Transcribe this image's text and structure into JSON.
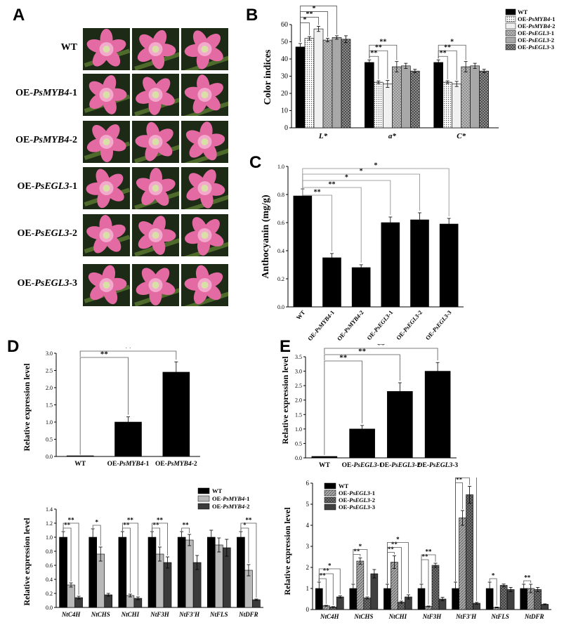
{
  "panels": {
    "A": "A",
    "B": "B",
    "C": "C",
    "D": "D",
    "E": "E"
  },
  "panel_A": {
    "rows": [
      {
        "prefix": "WT",
        "gene": "",
        "suffix": ""
      },
      {
        "prefix": "OE-",
        "gene": "PsMYB4",
        "suffix": "-1"
      },
      {
        "prefix": "OE-",
        "gene": "PsMYB4",
        "suffix": "-2"
      },
      {
        "prefix": "OE-",
        "gene": "PsEGL3",
        "suffix": "-1"
      },
      {
        "prefix": "OE-",
        "gene": "PsEGL3",
        "suffix": "-2"
      },
      {
        "prefix": "OE-",
        "gene": "PsEGL3",
        "suffix": "-3"
      }
    ],
    "colors": {
      "background": "#1d2a16",
      "petal": "#e46aa4",
      "petal_light": "#f2a9cb",
      "center": "#d8e0a6"
    }
  },
  "chart_data": [
    {
      "id": "B",
      "type": "bar",
      "ylabel": "Color indices",
      "ylim": [
        0,
        60
      ],
      "yticks": [
        0,
        10,
        20,
        30,
        40,
        50,
        60
      ],
      "categories": [
        "L*",
        "a*",
        "C*"
      ],
      "legend_placement": "top-right",
      "series": [
        {
          "name": "WT",
          "values": [
            47,
            38,
            38
          ],
          "errors": [
            2,
            1.5,
            1.5
          ],
          "pattern": "black"
        },
        {
          "name": "OE-PsMYB4-1",
          "values": [
            52,
            26.5,
            26.5
          ],
          "errors": [
            1,
            0.8,
            0.8
          ],
          "pattern": "dots"
        },
        {
          "name": "OE-PsMYB4-2",
          "values": [
            57.5,
            25.5,
            25.5
          ],
          "errors": [
            1.5,
            2,
            1.5
          ],
          "pattern": "light"
        },
        {
          "name": "OE-PsEGL3-1",
          "values": [
            51,
            35.5,
            35.5
          ],
          "errors": [
            1,
            3,
            3
          ],
          "pattern": "grid"
        },
        {
          "name": "OE-PsEGL3-2",
          "values": [
            52.5,
            36,
            36
          ],
          "errors": [
            1,
            1.5,
            1.5
          ],
          "pattern": "mid"
        },
        {
          "name": "OE-PsEGL3-3",
          "values": [
            51.5,
            33,
            33
          ],
          "errors": [
            2,
            1,
            1
          ],
          "pattern": "cross"
        }
      ],
      "significance": [
        {
          "category": "L*",
          "marks": [
            "*",
            "**",
            "*",
            "*"
          ]
        },
        {
          "category": "a*",
          "marks": [
            "**",
            "**",
            "**"
          ]
        },
        {
          "category": "C*",
          "marks": [
            "**",
            "**",
            "*"
          ]
        }
      ]
    },
    {
      "id": "C",
      "type": "bar",
      "ylabel": "Anthocyanin (mg/g)",
      "ylim": [
        0,
        1.0
      ],
      "yticks": [
        "0.0",
        "0.2",
        "0.4",
        "0.6",
        "0.8",
        "1.0"
      ],
      "categories": [
        "WT",
        "OE-PsMYB4-1",
        "OE-PsMYB4-2",
        "OE-PsEGL3-1",
        "OE-PsEGL3-2",
        "OE-PsEGL3-3"
      ],
      "values": [
        0.79,
        0.35,
        0.28,
        0.6,
        0.62,
        0.59
      ],
      "errors": [
        0.05,
        0.03,
        0.02,
        0.04,
        0.05,
        0.04
      ],
      "significance": [
        "**",
        "**",
        "*",
        "*",
        "*"
      ]
    },
    {
      "id": "D_top",
      "type": "bar",
      "ylabel": "Relative expression level",
      "ylim": [
        0,
        3.0
      ],
      "yticks": [
        "0.0",
        "0.5",
        "1.0",
        "1.5",
        "2.0",
        "2.5",
        "3.0"
      ],
      "categories": [
        "WT",
        "OE-PsMYB4-1",
        "OE-PsMYB4-2"
      ],
      "values": [
        0.02,
        1.0,
        2.45
      ],
      "errors": [
        0,
        0.15,
        0.3
      ],
      "significance": [
        "**",
        "**"
      ]
    },
    {
      "id": "D_bottom",
      "type": "bar",
      "ylabel": "Relative expression level",
      "ylim": [
        0,
        1.4
      ],
      "yticks": [
        "0.0",
        "0.2",
        "0.4",
        "0.6",
        "0.8",
        "1.0",
        "1.2",
        "1.4"
      ],
      "categories": [
        "NtC4H",
        "NtCHS",
        "NtCHI",
        "NtF3H",
        "NtF3'H",
        "NtFLS",
        "NtDFR"
      ],
      "legend_placement": "top-right",
      "series": [
        {
          "name": "WT",
          "values": [
            1.0,
            1.0,
            1.0,
            1.0,
            1.0,
            1.0,
            1.0
          ],
          "errors": [
            0.08,
            0.12,
            0.08,
            0.08,
            0.08,
            0.1,
            0.08
          ]
        },
        {
          "name": "OE-PsMYB4-1",
          "values": [
            0.32,
            0.76,
            0.17,
            0.76,
            0.96,
            0.89,
            0.53
          ],
          "errors": [
            0.03,
            0.1,
            0.02,
            0.1,
            0.08,
            0.1,
            0.08
          ]
        },
        {
          "name": "OE-PsMYB4-2",
          "values": [
            0.14,
            0.18,
            0.13,
            0.64,
            0.64,
            0.85,
            0.11
          ],
          "errors": [
            0.02,
            0.02,
            0.02,
            0.08,
            0.1,
            0.12,
            0.01
          ]
        }
      ],
      "significance": [
        {
          "category": "NtC4H",
          "marks": [
            "**",
            "**"
          ]
        },
        {
          "category": "NtCHS",
          "marks": [
            "*"
          ]
        },
        {
          "category": "NtCHI",
          "marks": [
            "**",
            "**"
          ]
        },
        {
          "category": "NtF3H",
          "marks": [
            "**",
            "**"
          ]
        },
        {
          "category": "NtF3'H",
          "marks": [
            "**"
          ]
        },
        {
          "category": "NtDFR",
          "marks": [
            "*",
            "**"
          ]
        }
      ]
    },
    {
      "id": "E_top",
      "type": "bar",
      "ylabel": "Relative expression level",
      "ylim": [
        0,
        3.5
      ],
      "yticks": [
        "0.0",
        "0.5",
        "1.0",
        "1.5",
        "2.0",
        "2.5",
        "3.0",
        "3.5"
      ],
      "categories": [
        "WT",
        "OE-PsEGL3-1",
        "OE-PsEGL3-2",
        "OE-PsEGL3-3"
      ],
      "values": [
        0.05,
        1.0,
        2.3,
        3.0
      ],
      "errors": [
        0,
        0.12,
        0.3,
        0.3
      ],
      "significance": [
        "**",
        "**",
        "**"
      ]
    },
    {
      "id": "E_bottom",
      "type": "bar",
      "ylabel": "Relative expression level",
      "ylim": [
        0,
        6
      ],
      "yticks": [
        "0",
        "1",
        "2",
        "3",
        "4",
        "5",
        "6"
      ],
      "categories": [
        "NtC4H",
        "NtCHS",
        "NtCHI",
        "NtF3H",
        "NtF3'H",
        "NtFLS",
        "NtDFR"
      ],
      "legend_placement": "top-left",
      "series": [
        {
          "name": "WT",
          "values": [
            1.0,
            1.0,
            1.0,
            1.0,
            1.0,
            1.0,
            1.0
          ],
          "errors": [
            0.3,
            0.2,
            0.2,
            0.2,
            0.3,
            0.3,
            0.2
          ]
        },
        {
          "name": "OE-PsEGL3-1",
          "values": [
            0.18,
            2.3,
            2.25,
            0.15,
            4.35,
            0.1,
            1.0
          ],
          "errors": [
            0.02,
            0.15,
            0.3,
            0.02,
            0.35,
            0.02,
            0.2
          ]
        },
        {
          "name": "OE-PsEGL3-2",
          "values": [
            0.12,
            0.55,
            0.35,
            2.1,
            5.45,
            1.15,
            0.95
          ],
          "errors": [
            0.02,
            0.05,
            0.05,
            0.1,
            0.4,
            0.06,
            0.1
          ]
        },
        {
          "name": "OE-PsEGL3-3",
          "values": [
            0.6,
            1.7,
            0.6,
            0.5,
            0.3,
            0.95,
            0.25
          ],
          "errors": [
            0.05,
            0.2,
            0.1,
            0.08,
            0.04,
            0.1,
            0.02
          ]
        }
      ],
      "significance": [
        {
          "category": "NtC4H",
          "marks": [
            "**",
            "**",
            "*"
          ]
        },
        {
          "category": "NtCHS",
          "marks": [
            "**",
            "*"
          ]
        },
        {
          "category": "NtCHI",
          "marks": [
            "**",
            "**",
            "*"
          ]
        },
        {
          "category": "NtF3H",
          "marks": [
            "**",
            "**"
          ]
        },
        {
          "category": "NtF3'H",
          "marks": [
            "**",
            "**",
            "**"
          ]
        },
        {
          "category": "NtFLS",
          "marks": [
            "*"
          ]
        },
        {
          "category": "NtDFR",
          "marks": [
            "**"
          ]
        }
      ]
    }
  ]
}
